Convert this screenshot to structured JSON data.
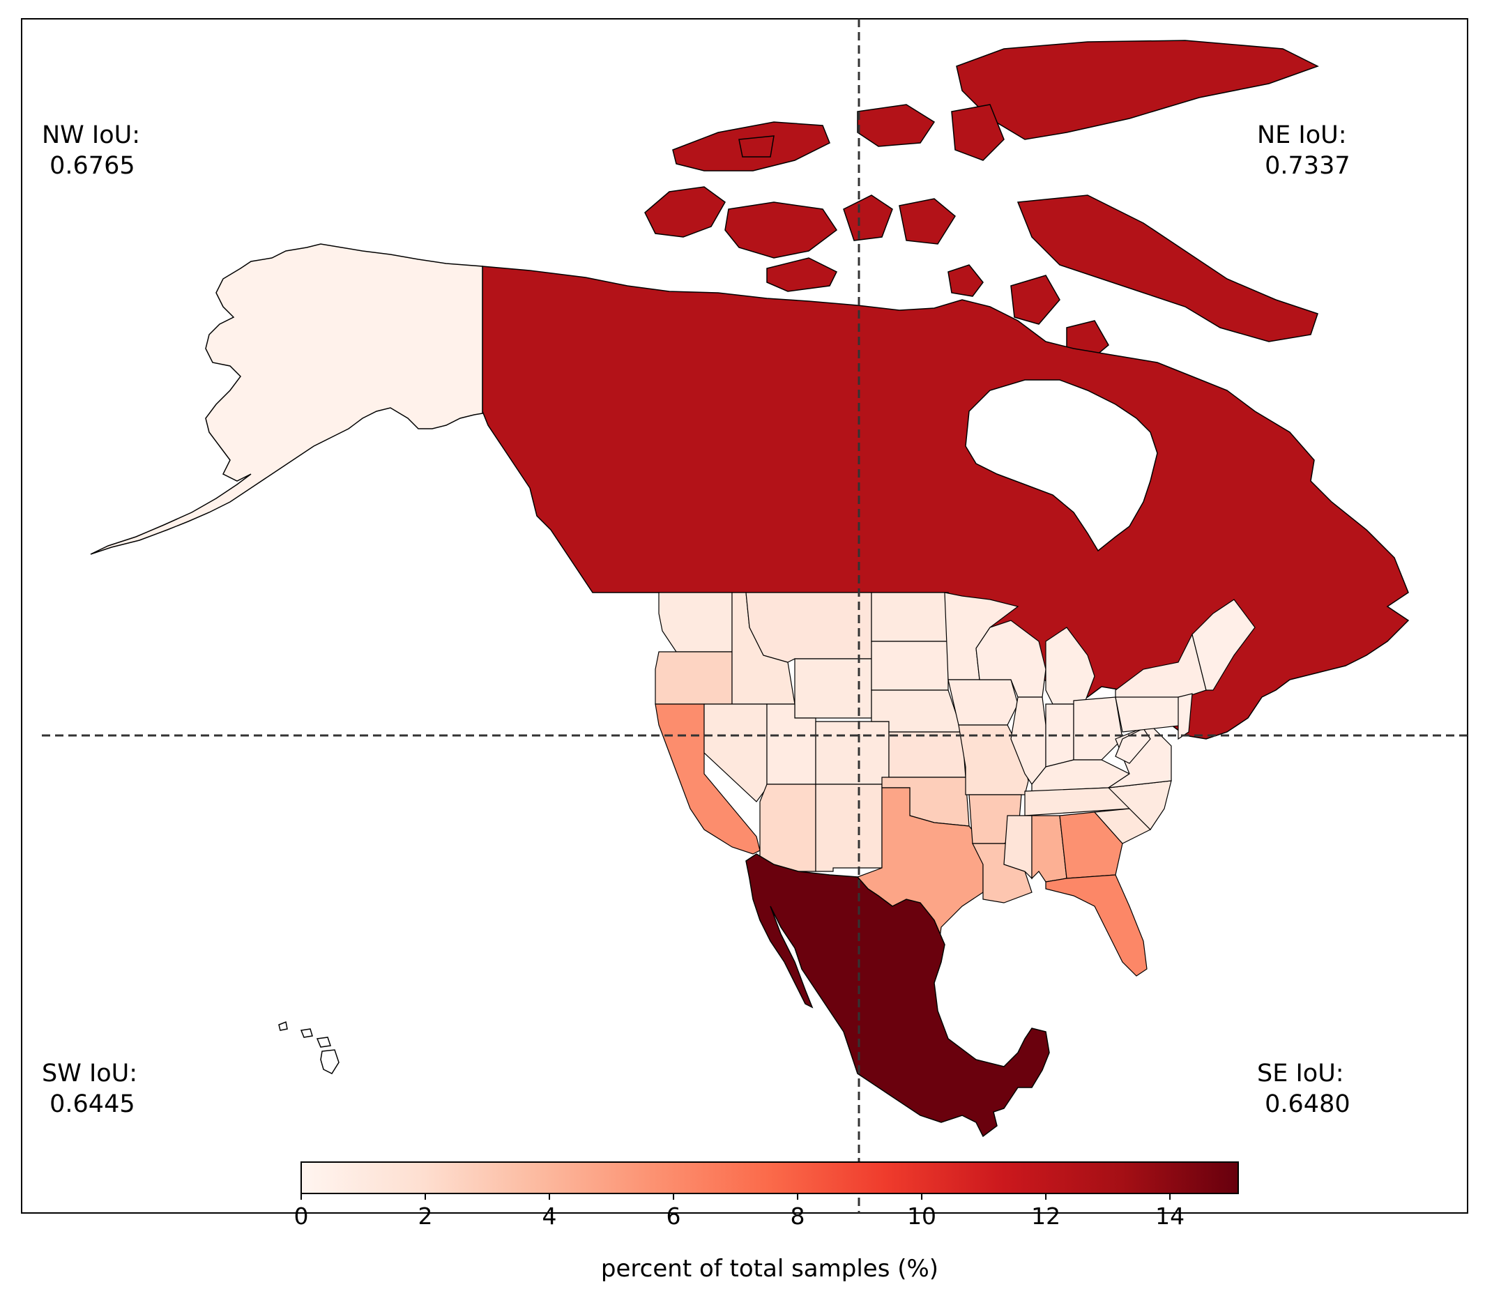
{
  "colors": {
    "canada": "#bf161b",
    "mexico": "#67000d",
    "alaska": "#fff0e9",
    "land_outline": "#000000",
    "divider": "#333333",
    "colormap": [
      "#fff5f0",
      "#fee0d2",
      "#fcbba1",
      "#fc9272",
      "#fb6a4a",
      "#ef3b2c",
      "#cb181d",
      "#a50f15",
      "#67000d"
    ]
  },
  "quadrants": {
    "nw": {
      "label": "NW IoU:",
      "value": "0.6765"
    },
    "ne": {
      "label": "NE IoU:",
      "value": "0.7337"
    },
    "sw": {
      "label": "SW IoU:",
      "value": "0.6445"
    },
    "se": {
      "label": "SE IoU:",
      "value": "0.6480"
    }
  },
  "colorbar": {
    "label": "percent of total samples (%)",
    "min": 0,
    "max": 15.1,
    "ticks": [
      "0",
      "2",
      "4",
      "6",
      "8",
      "10",
      "12",
      "14"
    ]
  },
  "chart_data": {
    "type": "choropleth",
    "value_units": "percent of total samples (%)",
    "regions": [
      {
        "name": "Canada",
        "value": 12.5
      },
      {
        "name": "Mexico",
        "value": 15.0
      },
      {
        "name": "Alaska",
        "value": 0.3
      },
      {
        "name": "California",
        "value": 5.9
      },
      {
        "name": "Oregon",
        "value": 2.5
      },
      {
        "name": "Washington",
        "value": 1.0
      },
      {
        "name": "Texas",
        "value": 4.8
      },
      {
        "name": "Florida",
        "value": 6.2
      },
      {
        "name": "Georgia",
        "value": 5.7
      },
      {
        "name": "Alabama",
        "value": 4.3
      }
    ]
  }
}
